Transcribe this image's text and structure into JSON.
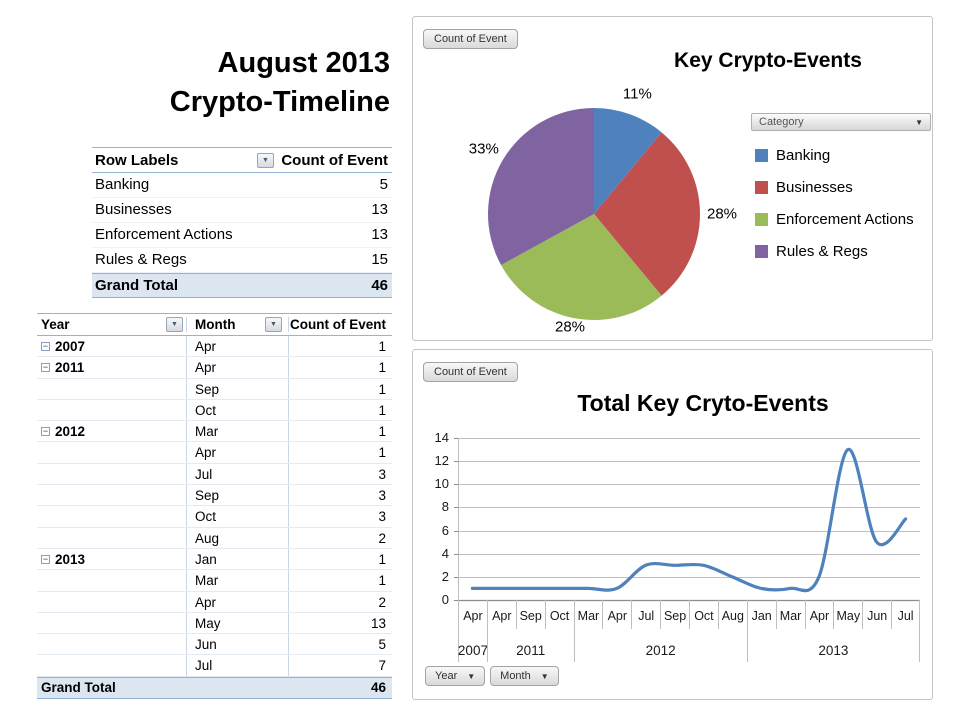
{
  "title": {
    "line1": "August 2013",
    "line2": "Crypto-Timeline"
  },
  "summary_table": {
    "header": {
      "row_labels": "Row Labels",
      "count": "Count of Event"
    },
    "rows": [
      {
        "label": "Banking",
        "count": 5
      },
      {
        "label": "Businesses",
        "count": 13
      },
      {
        "label": "Enforcement Actions",
        "count": 13
      },
      {
        "label": "Rules & Regs",
        "count": 15
      }
    ],
    "grand_total": {
      "label": "Grand Total",
      "count": 46
    }
  },
  "detail_table": {
    "header": {
      "year": "Year",
      "month": "Month",
      "count": "Count of Event"
    },
    "rows": [
      {
        "year": "2007",
        "month": "Apr",
        "count": 1
      },
      {
        "year": "2011",
        "month": "Apr",
        "count": 1
      },
      {
        "year": "",
        "month": "Sep",
        "count": 1
      },
      {
        "year": "",
        "month": "Oct",
        "count": 1
      },
      {
        "year": "2012",
        "month": "Mar",
        "count": 1
      },
      {
        "year": "",
        "month": "Apr",
        "count": 1
      },
      {
        "year": "",
        "month": "Jul",
        "count": 3
      },
      {
        "year": "",
        "month": "Sep",
        "count": 3
      },
      {
        "year": "",
        "month": "Oct",
        "count": 3
      },
      {
        "year": "",
        "month": "Aug",
        "count": 2
      },
      {
        "year": "2013",
        "month": "Jan",
        "count": 1
      },
      {
        "year": "",
        "month": "Mar",
        "count": 1
      },
      {
        "year": "",
        "month": "Apr",
        "count": 2
      },
      {
        "year": "",
        "month": "May",
        "count": 13
      },
      {
        "year": "",
        "month": "Jun",
        "count": 5
      },
      {
        "year": "",
        "month": "Jul",
        "count": 7
      }
    ],
    "grand_total": {
      "label": "Grand Total",
      "count": 46
    }
  },
  "pie_panel": {
    "field_button": "Count of Event",
    "title": "Key Crypto-Events",
    "filter_dropdown": "Category"
  },
  "line_panel": {
    "field_button": "Count of Event",
    "title": "Total Key Cryto-Events",
    "axis_field_buttons": [
      "Year",
      "Month"
    ]
  },
  "chart_data": [
    {
      "type": "pie",
      "title": "Key Crypto-Events",
      "categories": [
        "Banking",
        "Businesses",
        "Enforcement Actions",
        "Rules & Regs"
      ],
      "values_percent": [
        11,
        28,
        28,
        33
      ],
      "counts": [
        5,
        13,
        13,
        15
      ],
      "colors": [
        "#4F81BD",
        "#C0504D",
        "#9BBB59",
        "#8064A2"
      ],
      "slice_labels": [
        "11%",
        "28%",
        "28%",
        "33%"
      ],
      "start_angle_deg": 0,
      "direction": "clockwise",
      "legend_position": "right"
    },
    {
      "type": "line",
      "title": "Total Key Cryto-Events",
      "x_months": [
        "Apr",
        "Apr",
        "Sep",
        "Oct",
        "Mar",
        "Apr",
        "Jul",
        "Sep",
        "Oct",
        "Aug",
        "Jan",
        "Mar",
        "Apr",
        "May",
        "Jun",
        "Jul"
      ],
      "year_groups": [
        {
          "year": "2007",
          "months": 1
        },
        {
          "year": "2011",
          "months": 3
        },
        {
          "year": "2012",
          "months": 6
        },
        {
          "year": "2013",
          "months": 6
        }
      ],
      "values": [
        1,
        1,
        1,
        1,
        1,
        1,
        3,
        3,
        3,
        2,
        1,
        1,
        2,
        13,
        5,
        7
      ],
      "ylim": [
        0,
        14
      ],
      "ytick_step": 2,
      "grid": true,
      "smooth": true,
      "line_color": "#4F81BD",
      "legend_position": "none"
    }
  ],
  "colors": {
    "accent_blue": "#4F81BD",
    "accent_red": "#C0504D",
    "accent_green": "#9BBB59",
    "accent_purple": "#8064A2",
    "pivot_total_fill": "#DCE6F1",
    "pivot_border": "#95B3D7",
    "grid_line": "#BFBFBF"
  },
  "icons": {
    "filter_arrow": "▼",
    "collapse_minus": "−",
    "dropdown_arrow": "▼"
  }
}
